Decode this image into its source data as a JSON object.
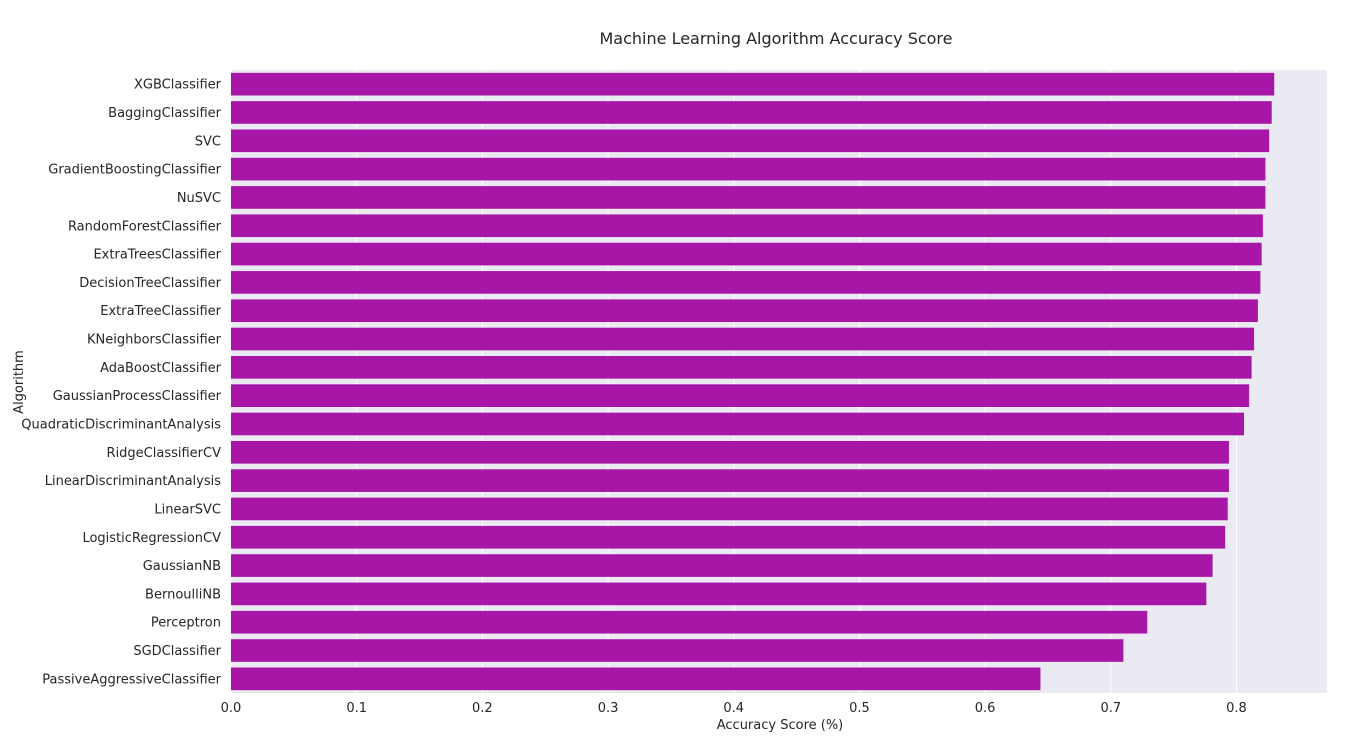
{
  "chart_data": {
    "type": "bar",
    "orientation": "horizontal",
    "title": "Machine Learning Algorithm Accuracy Score",
    "xlabel": "Accuracy Score (%)",
    "ylabel": "Algorithm",
    "xlim": [
      0,
      0.872
    ],
    "xticks": [
      "0.0",
      "0.1",
      "0.2",
      "0.3",
      "0.4",
      "0.5",
      "0.6",
      "0.7",
      "0.8"
    ],
    "grid": true,
    "colors": {
      "bar": "#a716a7",
      "plot_background": "#eaeaf2",
      "grid": "#ffffff",
      "text": "#262626"
    },
    "categories": [
      "XGBClassifier",
      "BaggingClassifier",
      "SVC",
      "GradientBoostingClassifier",
      "NuSVC",
      "RandomForestClassifier",
      "ExtraTreesClassifier",
      "DecisionTreeClassifier",
      "ExtraTreeClassifier",
      "KNeighborsClassifier",
      "AdaBoostClassifier",
      "GaussianProcessClassifier",
      "QuadraticDiscriminantAnalysis",
      "RidgeClassifierCV",
      "LinearDiscriminantAnalysis",
      "LinearSVC",
      "LogisticRegressionCV",
      "GaussianNB",
      "BernoulliNB",
      "Perceptron",
      "SGDClassifier",
      "PassiveAggressiveClassifier"
    ],
    "values": [
      0.83,
      0.828,
      0.826,
      0.823,
      0.823,
      0.821,
      0.82,
      0.819,
      0.817,
      0.814,
      0.812,
      0.81,
      0.806,
      0.794,
      0.794,
      0.793,
      0.791,
      0.781,
      0.776,
      0.729,
      0.71,
      0.644
    ]
  }
}
